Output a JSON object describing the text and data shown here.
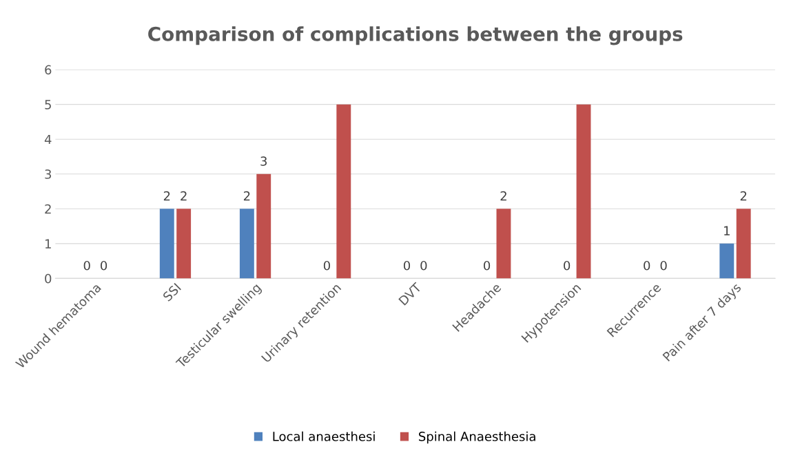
{
  "chart_data": {
    "type": "bar",
    "title": "Comparison of complications between the groups",
    "categories": [
      "Wound hematoma",
      "SSI",
      "Testicular swelling",
      "Urinary retention",
      "DVT",
      "Headache",
      "Hypotension",
      "Recurrence",
      "Pain after 7 days"
    ],
    "series": [
      {
        "name": "Local anaesthesi",
        "color": "#4f81bd",
        "values": [
          0,
          2,
          2,
          0,
          0,
          0,
          0,
          0,
          1
        ],
        "value_labels": [
          "0",
          "2",
          "2",
          "0",
          "0",
          "0",
          "0",
          "0",
          "1"
        ]
      },
      {
        "name": "Spinal Anaesthesia",
        "color": "#c0504d",
        "values": [
          0,
          2,
          3,
          5,
          0,
          2,
          5,
          0,
          2
        ],
        "value_labels": [
          "0",
          "2",
          "3",
          null,
          "0",
          "2",
          null,
          "0",
          "2"
        ]
      }
    ],
    "ylim": [
      0,
      6
    ],
    "yticks": [
      0,
      1,
      2,
      3,
      4,
      5,
      6
    ],
    "grid": "y",
    "legend": "bottom"
  }
}
